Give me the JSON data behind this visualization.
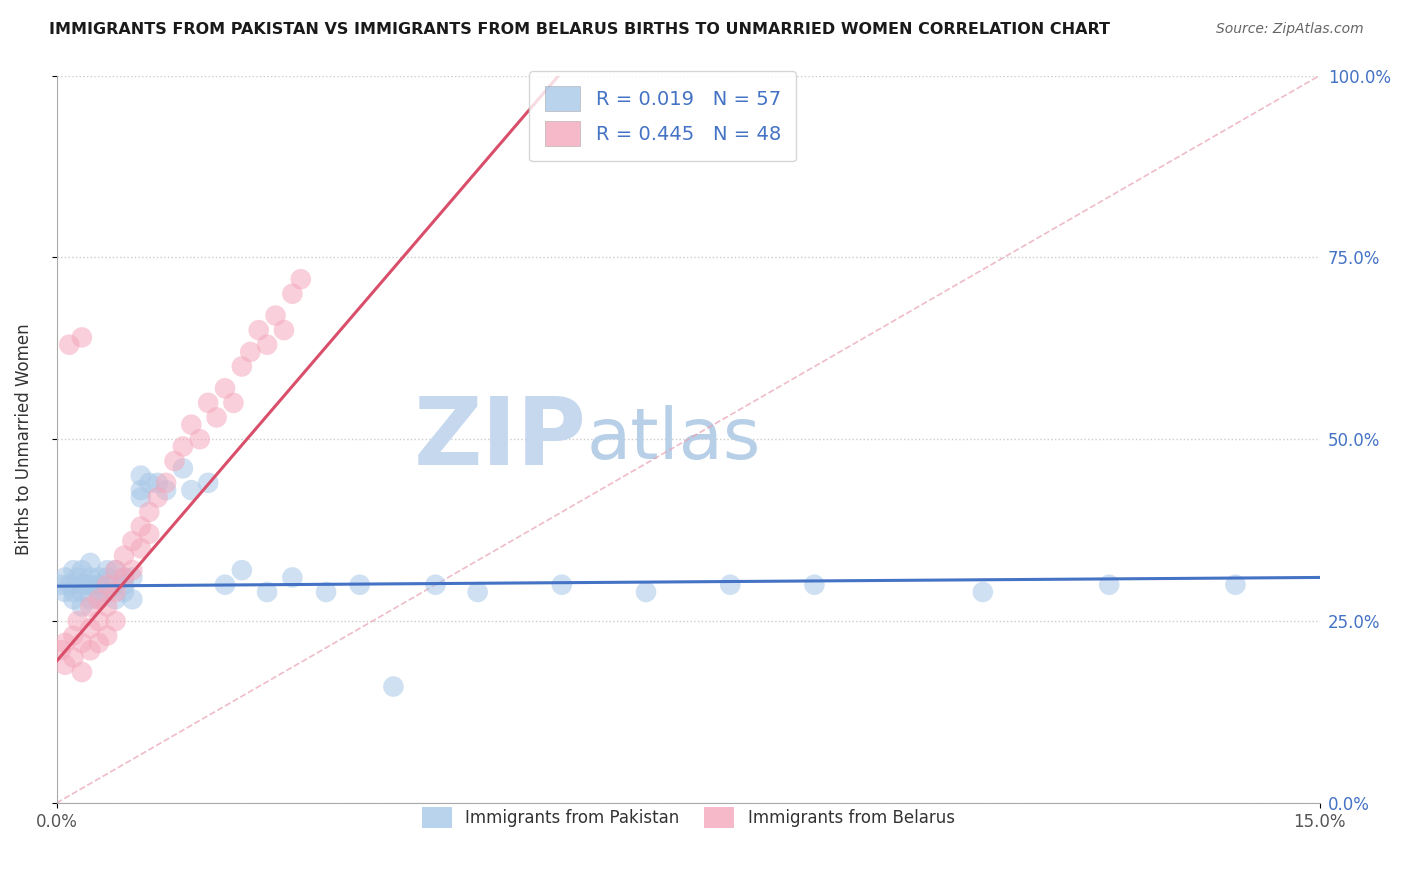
{
  "title": "IMMIGRANTS FROM PAKISTAN VS IMMIGRANTS FROM BELARUS BIRTHS TO UNMARRIED WOMEN CORRELATION CHART",
  "source": "Source: ZipAtlas.com",
  "ylabel": "Births to Unmarried Women",
  "xlim": [
    0.0,
    0.15
  ],
  "ylim": [
    0.0,
    1.0
  ],
  "ytick_values": [
    0.0,
    0.25,
    0.5,
    0.75,
    1.0
  ],
  "ytick_labels": [
    "0.0%",
    "25.0%",
    "50.0%",
    "75.0%",
    "100.0%"
  ],
  "xtick_values": [
    0.0,
    0.15
  ],
  "xtick_labels": [
    "0.0%",
    "15.0%"
  ],
  "pakistan_R": 0.019,
  "pakistan_N": 57,
  "belarus_R": 0.445,
  "belarus_N": 48,
  "pakistan_color": "#a8c8e8",
  "belarus_color": "#f4a8bc",
  "pakistan_line_color": "#4472c4",
  "belarus_line_color": "#d94f6a",
  "watermark_zip": "ZIP",
  "watermark_atlas": "atlas",
  "watermark_color_zip": "#c5d8ee",
  "watermark_color_atlas": "#b8cfe8",
  "pakistan_x": [
    0.0005,
    0.001,
    0.001,
    0.0015,
    0.002,
    0.002,
    0.002,
    0.0025,
    0.003,
    0.003,
    0.003,
    0.003,
    0.0035,
    0.004,
    0.004,
    0.004,
    0.004,
    0.005,
    0.005,
    0.005,
    0.005,
    0.006,
    0.006,
    0.006,
    0.007,
    0.007,
    0.007,
    0.008,
    0.008,
    0.008,
    0.009,
    0.009,
    0.01,
    0.01,
    0.01,
    0.011,
    0.012,
    0.013,
    0.015,
    0.016,
    0.018,
    0.02,
    0.022,
    0.025,
    0.028,
    0.032,
    0.036,
    0.04,
    0.045,
    0.05,
    0.06,
    0.07,
    0.08,
    0.09,
    0.11,
    0.125,
    0.14
  ],
  "pakistan_y": [
    0.3,
    0.31,
    0.29,
    0.3,
    0.32,
    0.29,
    0.28,
    0.31,
    0.3,
    0.32,
    0.29,
    0.27,
    0.3,
    0.31,
    0.28,
    0.3,
    0.33,
    0.29,
    0.31,
    0.28,
    0.3,
    0.32,
    0.29,
    0.31,
    0.3,
    0.28,
    0.32,
    0.29,
    0.31,
    0.3,
    0.28,
    0.31,
    0.43,
    0.45,
    0.42,
    0.44,
    0.44,
    0.43,
    0.46,
    0.43,
    0.44,
    0.3,
    0.32,
    0.29,
    0.31,
    0.29,
    0.3,
    0.16,
    0.3,
    0.29,
    0.3,
    0.29,
    0.3,
    0.3,
    0.29,
    0.3,
    0.3
  ],
  "belarus_x": [
    0.0005,
    0.001,
    0.001,
    0.0015,
    0.002,
    0.002,
    0.0025,
    0.003,
    0.003,
    0.003,
    0.004,
    0.004,
    0.004,
    0.005,
    0.005,
    0.005,
    0.006,
    0.006,
    0.006,
    0.007,
    0.007,
    0.007,
    0.008,
    0.008,
    0.009,
    0.009,
    0.01,
    0.01,
    0.011,
    0.011,
    0.012,
    0.013,
    0.014,
    0.015,
    0.016,
    0.017,
    0.018,
    0.019,
    0.02,
    0.021,
    0.022,
    0.023,
    0.024,
    0.025,
    0.026,
    0.027,
    0.028,
    0.029
  ],
  "belarus_y": [
    0.21,
    0.22,
    0.19,
    0.63,
    0.23,
    0.2,
    0.25,
    0.22,
    0.18,
    0.64,
    0.27,
    0.24,
    0.21,
    0.28,
    0.25,
    0.22,
    0.3,
    0.27,
    0.23,
    0.32,
    0.29,
    0.25,
    0.34,
    0.31,
    0.36,
    0.32,
    0.38,
    0.35,
    0.4,
    0.37,
    0.42,
    0.44,
    0.47,
    0.49,
    0.52,
    0.5,
    0.55,
    0.53,
    0.57,
    0.55,
    0.6,
    0.62,
    0.65,
    0.63,
    0.67,
    0.65,
    0.7,
    0.72
  ],
  "pakistan_line_x0": 0.0,
  "pakistan_line_y0": 0.298,
  "pakistan_line_x1": 0.15,
  "pakistan_line_y1": 0.31,
  "belarus_line_x0": 0.0,
  "belarus_line_y0": 0.195,
  "belarus_line_x1": 0.04,
  "belarus_line_y1": 0.735
}
